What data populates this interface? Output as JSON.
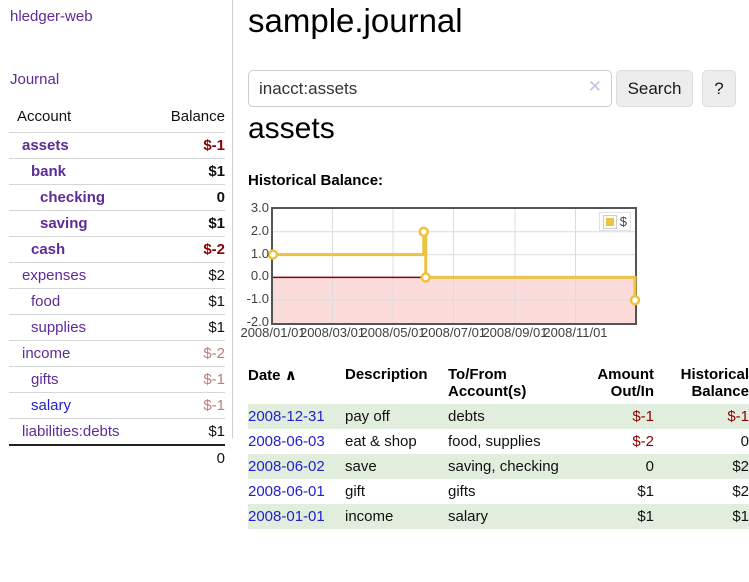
{
  "app": {
    "brand": "hledger-web",
    "nav_journal": "Journal"
  },
  "header": {
    "title": "sample.journal"
  },
  "search": {
    "value": "inacct:assets",
    "clear_icon": "✕",
    "button_label": "Search",
    "help_label": "?"
  },
  "account_page": {
    "heading": "assets",
    "chart_label": "Historical Balance:"
  },
  "sidebar": {
    "accounts_header": {
      "account": "Account",
      "balance": "Balance"
    },
    "accounts": [
      {
        "name": "assets",
        "balance": "$-1"
      },
      {
        "name": "bank",
        "balance": "$1"
      },
      {
        "name": "checking",
        "balance": "0"
      },
      {
        "name": "saving",
        "balance": "$1"
      },
      {
        "name": "cash",
        "balance": "$-2"
      },
      {
        "name": "expenses",
        "balance": "$2"
      },
      {
        "name": "food",
        "balance": "$1"
      },
      {
        "name": "supplies",
        "balance": "$1"
      },
      {
        "name": "income",
        "balance": "$-2"
      },
      {
        "name": "gifts",
        "balance": "$-1"
      },
      {
        "name": "salary",
        "balance": "$-1"
      },
      {
        "name": "liabilities:debts",
        "balance": "$1"
      }
    ],
    "total": "0"
  },
  "chart_data": {
    "type": "line",
    "step": true,
    "title": "Historical Balance:",
    "legend": "$",
    "legend_position": "top-right",
    "grid": true,
    "ylim": [
      -2,
      3
    ],
    "x_span_days": 365,
    "yticks": [
      {
        "label": "3.0",
        "v": 3
      },
      {
        "label": "2.0",
        "v": 2
      },
      {
        "label": "1.0",
        "v": 1
      },
      {
        "label": "0.0",
        "v": 0
      },
      {
        "label": "-1.0",
        "v": -1
      },
      {
        "label": "-2.0",
        "v": -2
      }
    ],
    "xticks": [
      {
        "label": "2008/01/01",
        "d": 0
      },
      {
        "label": "2008/03/01",
        "d": 60
      },
      {
        "label": "2008/05/01",
        "d": 121
      },
      {
        "label": "2008/07/01",
        "d": 182
      },
      {
        "label": "2008/09/01",
        "d": 244
      },
      {
        "label": "2008/11/01",
        "d": 305
      }
    ],
    "points": [
      {
        "date": "2008-01-01",
        "d": 0,
        "value": 1
      },
      {
        "date": "2008-06-01",
        "d": 152,
        "value": 2
      },
      {
        "date": "2008-06-03",
        "d": 154,
        "value": 0
      },
      {
        "date": "2008-12-31",
        "d": 365,
        "value": -1
      }
    ]
  },
  "register": {
    "headers": {
      "date": "Date",
      "sort_icon": "∧",
      "description": "Description",
      "tofrom": "To/From Account(s)",
      "amount": "Amount Out/In",
      "balance": "Historical Balance"
    },
    "rows": [
      {
        "date": "2008-12-31",
        "description": "pay off",
        "accounts": "debts",
        "amount": "$-1",
        "balance": "$-1"
      },
      {
        "date": "2008-06-03",
        "description": "eat & shop",
        "accounts": "food, supplies",
        "amount": "$-2",
        "balance": "0"
      },
      {
        "date": "2008-06-02",
        "description": "save",
        "accounts": "saving, checking",
        "amount": "0",
        "balance": "$2"
      },
      {
        "date": "2008-06-01",
        "description": "gift",
        "accounts": "gifts",
        "amount": "$1",
        "balance": "$2"
      },
      {
        "date": "2008-01-01",
        "description": "income",
        "accounts": "salary",
        "amount": "$1",
        "balance": "$1"
      }
    ]
  },
  "colors": {
    "link_purple": "#5e2b97",
    "link_blue": "#2222cc",
    "negative_dark": "#8b0000",
    "negative_light": "#bd7e7e",
    "row_green": "#e2eedd",
    "series_gold": "#edc240",
    "chart_negative_fill": "#fcdbdb",
    "zero_line": "#8b0000",
    "gridline": "#dcdcdc",
    "chart_border": "#545454"
  }
}
